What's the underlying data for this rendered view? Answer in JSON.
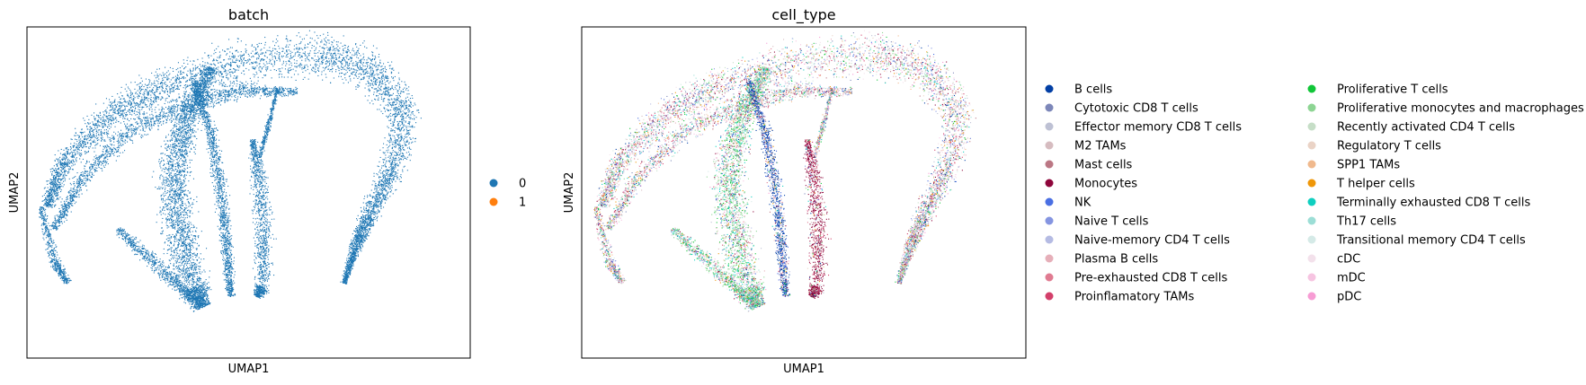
{
  "chart_data": [
    {
      "type": "scatter",
      "title": "batch",
      "xlabel": "UMAP1",
      "ylabel": "UMAP2",
      "grid": false,
      "legend_placement": "right",
      "legend": [
        {
          "label": "0",
          "color": "#1f77b4"
        },
        {
          "label": "1",
          "color": "#ff7f0e"
        }
      ]
    },
    {
      "type": "scatter",
      "title": "cell_type",
      "xlabel": "UMAP1",
      "ylabel": "UMAP2",
      "grid": false,
      "legend_placement": "right",
      "legend": [
        {
          "label": "B cells",
          "color": "#023fa5"
        },
        {
          "label": "Cytotoxic CD8 T cells",
          "color": "#7d87b9"
        },
        {
          "label": "Effector memory CD8 T cells",
          "color": "#bec1d4"
        },
        {
          "label": "M2 TAMs",
          "color": "#d6bcc0"
        },
        {
          "label": "Mast cells",
          "color": "#bb7784"
        },
        {
          "label": "Monocytes",
          "color": "#8e063b"
        },
        {
          "label": "NK",
          "color": "#4a6fe3"
        },
        {
          "label": "Naive T cells",
          "color": "#8595e1"
        },
        {
          "label": "Naive-memory CD4 T cells",
          "color": "#b5bbe3"
        },
        {
          "label": "Plasma B cells",
          "color": "#e6afb9"
        },
        {
          "label": "Pre-exhausted CD8 T cells",
          "color": "#e07b91"
        },
        {
          "label": "Proinflamatory TAMs",
          "color": "#d33f6a"
        },
        {
          "label": "Proliferative T cells",
          "color": "#11c638"
        },
        {
          "label": "Proliferative monocytes and macrophages",
          "color": "#8dd593"
        },
        {
          "label": "Recently activated CD4 T cells",
          "color": "#c6dec7"
        },
        {
          "label": "Regulatory T cells",
          "color": "#ead3c6"
        },
        {
          "label": "SPP1 TAMs",
          "color": "#f0b98d"
        },
        {
          "label": "T helper cells",
          "color": "#ef9708"
        },
        {
          "label": "Terminally exhausted CD8 T cells",
          "color": "#0fcfc0"
        },
        {
          "label": "Th17 cells",
          "color": "#9cded6"
        },
        {
          "label": "Transitional memory CD4 T cells",
          "color": "#d5eae7"
        },
        {
          "label": "cDC",
          "color": "#f3e1eb"
        },
        {
          "label": "mDC",
          "color": "#f6c4e1"
        },
        {
          "label": "pDC",
          "color": "#f79cd4"
        }
      ]
    }
  ]
}
